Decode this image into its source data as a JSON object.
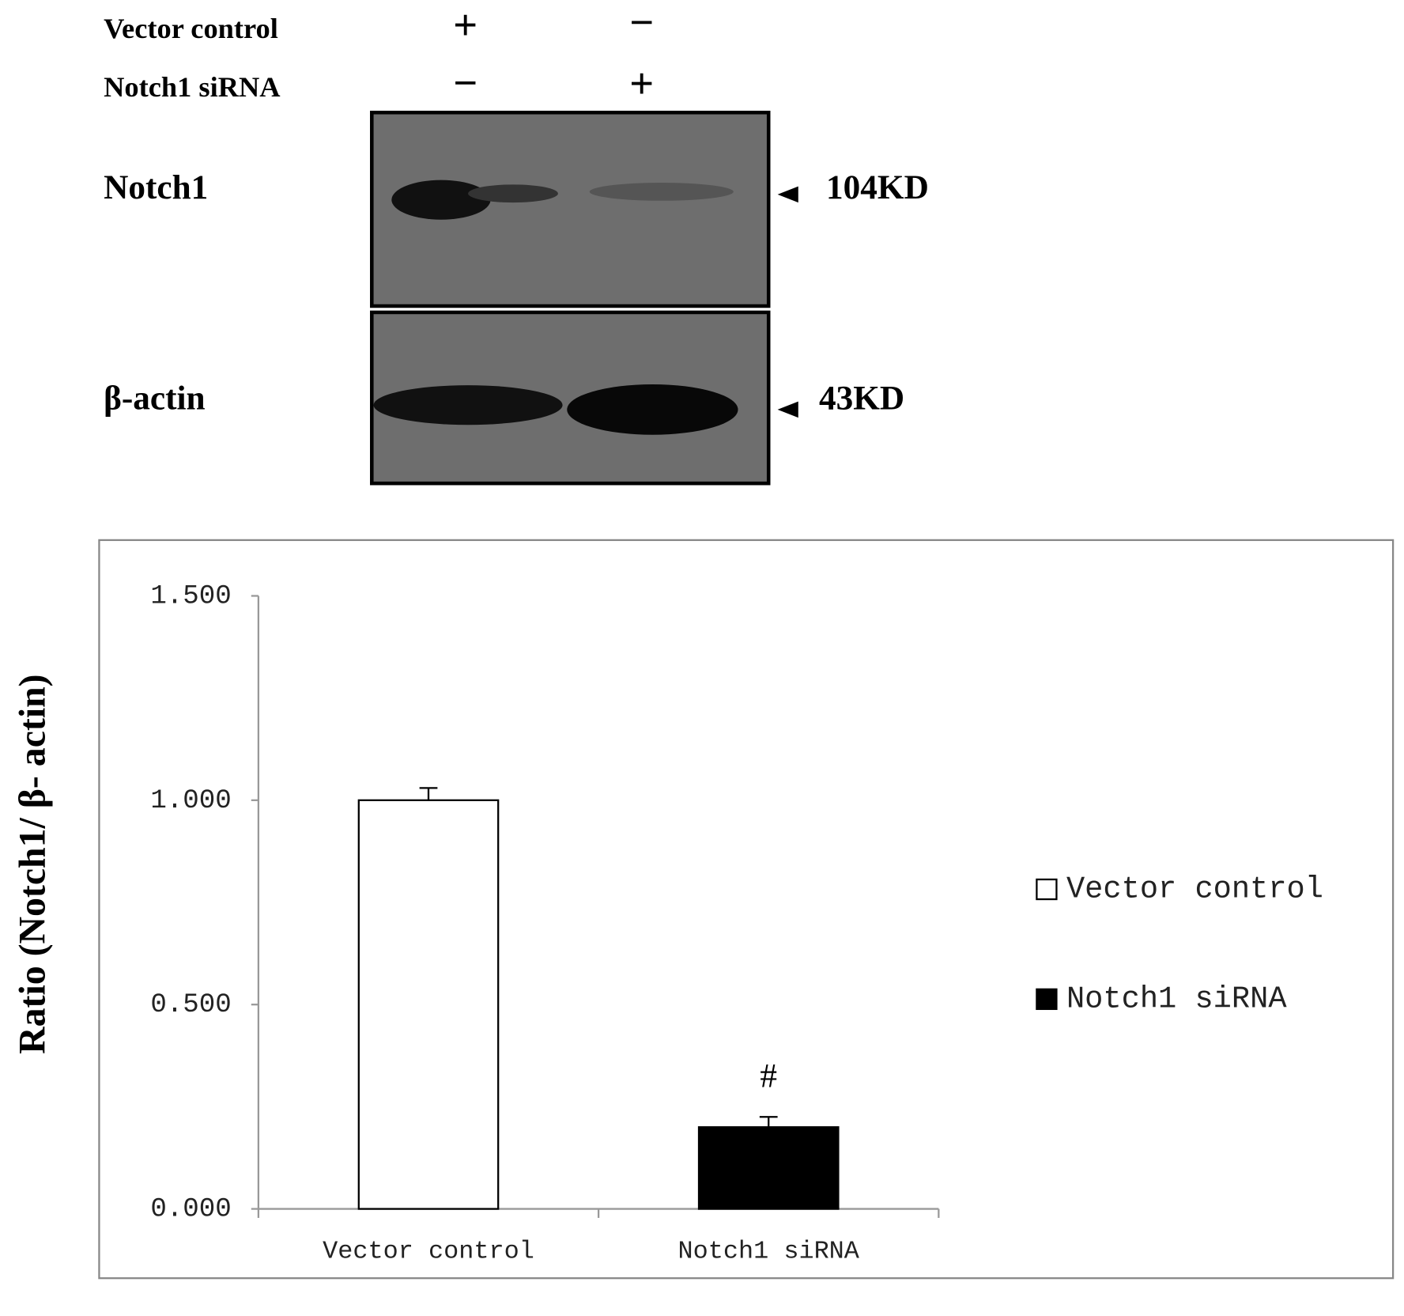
{
  "blot": {
    "row_labels": [
      "Vector control",
      "Notch1 siRNA"
    ],
    "signs": [
      [
        "+",
        "−"
      ],
      [
        "−",
        "+"
      ]
    ],
    "bands": [
      {
        "label": "Notch1",
        "size": "104KD"
      },
      {
        "label": "β-actin",
        "size": "43KD"
      }
    ]
  },
  "chart_data": {
    "type": "bar",
    "ylabel": "Ratio (Notch1/ β- actin)",
    "categories": [
      "Vector control",
      "Notch1 siRNA"
    ],
    "series": [
      {
        "name": "Vector control",
        "color": "#ffffff",
        "values": [
          1.0,
          null
        ],
        "errors": [
          0.03,
          null
        ]
      },
      {
        "name": "Notch1 siRNA",
        "color": "#000000",
        "values": [
          null,
          0.2
        ],
        "errors": [
          null,
          0.025
        ]
      }
    ],
    "annotations": [
      "#"
    ],
    "ylim": [
      0,
      1.5
    ],
    "yticks": [
      {
        "value": 0,
        "label": "0.000"
      },
      {
        "value": 0.5,
        "label": "0.500"
      },
      {
        "value": 1,
        "label": "1.000"
      },
      {
        "value": 1.5,
        "label": "1.500"
      }
    ]
  }
}
